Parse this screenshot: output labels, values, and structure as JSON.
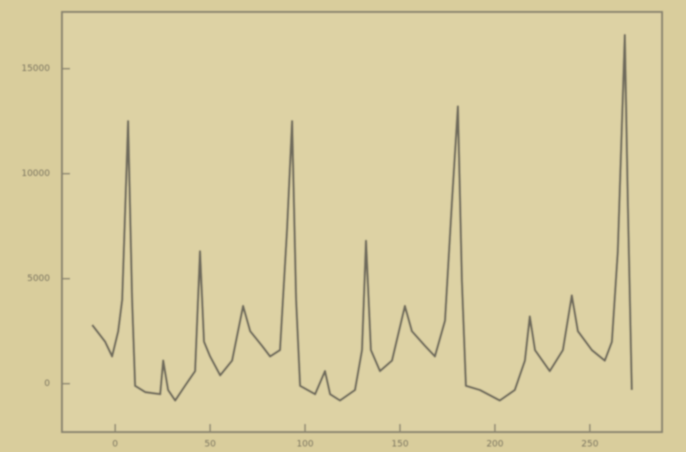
{
  "chart_data": {
    "type": "line",
    "x": [
      -12.1,
      -5.3,
      -1.6,
      1.6,
      3.7,
      6.8,
      8.9,
      10.5,
      15.8,
      23.7,
      25.3,
      27.9,
      31.6,
      36.8,
      42.1,
      44.7,
      46.8,
      50.0,
      55.3,
      61.6,
      67.4,
      71.1,
      77.4,
      81.6,
      86.8,
      90.5,
      93.2,
      95.3,
      97.4,
      105.3,
      110.5,
      113.2,
      118.4,
      126.3,
      130.0,
      132.1,
      134.7,
      139.5,
      145.8,
      152.6,
      156.3,
      163.2,
      168.4,
      173.7,
      177.4,
      180.5,
      182.6,
      184.7,
      192.1,
      202.6,
      210.5,
      215.8,
      218.4,
      221.1,
      228.9,
      235.8,
      240.5,
      243.7,
      251.1,
      257.9,
      261.6,
      264.7,
      268.4,
      270.0,
      272.1
    ],
    "series": [
      {
        "color": "#6e6a5c",
        "values": [
          2800,
          2000,
          1300,
          2500,
          4000,
          12500,
          4000,
          -100,
          -400,
          -500,
          1100,
          -300,
          -800,
          -100,
          600,
          6300,
          2000,
          1300,
          400,
          1100,
          3700,
          2500,
          1800,
          1300,
          1600,
          7300,
          12500,
          4000,
          -100,
          -500,
          600,
          -500,
          -800,
          -300,
          1600,
          6800,
          1600,
          600,
          1100,
          3700,
          2500,
          1800,
          1300,
          3000,
          8700,
          13200,
          4900,
          -100,
          -300,
          -800,
          -300,
          1100,
          3200,
          1600,
          600,
          1600,
          4200,
          2500,
          1600,
          1100,
          2000,
          6300,
          16600,
          8700,
          -300
        ]
      }
    ],
    "xlim": [
      -28,
      288
    ],
    "ylim": [
      -2300,
      17700
    ],
    "xticks": [
      0,
      50,
      100,
      150,
      200,
      250
    ],
    "yticks": [
      0,
      5000,
      10000,
      15000
    ]
  }
}
